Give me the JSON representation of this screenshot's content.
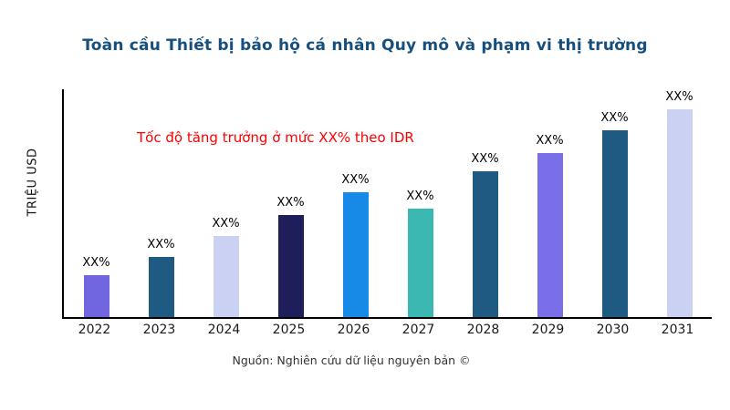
{
  "page": {
    "source": "Nguồn: Nghiên cứu dữ liệu nguyên bản ©"
  },
  "chart_data": {
    "type": "bar",
    "title": "Toàn cầu Thiết bị bảo hộ cá nhân Quy mô và phạm vi thị trường",
    "ylabel": "TRIỆU USD",
    "xlabel": "",
    "annotation": "Tốc độ tăng trưởng ở mức XX% theo IDR",
    "annotation_color": "#FF0000",
    "title_color": "#164F7D",
    "categories": [
      "2022",
      "2023",
      "2024",
      "2025",
      "2026",
      "2027",
      "2028",
      "2029",
      "2030",
      "2031"
    ],
    "values": [
      20,
      29,
      39,
      49,
      60,
      52,
      70,
      79,
      90,
      100
    ],
    "bar_labels": [
      "XX%",
      "XX%",
      "XX%",
      "XX%",
      "XX%",
      "XX%",
      "XX%",
      "XX%",
      "XX%",
      "XX%"
    ],
    "bar_colors": [
      "#7166E0",
      "#1F5A83",
      "#CBD1F2",
      "#1E1E5A",
      "#1789E6",
      "#3BB8B2",
      "#1F5A83",
      "#7A6FE8",
      "#1F5A83",
      "#CBD1F2"
    ],
    "ylim": [
      0,
      100
    ],
    "grid": false,
    "legend": false
  }
}
